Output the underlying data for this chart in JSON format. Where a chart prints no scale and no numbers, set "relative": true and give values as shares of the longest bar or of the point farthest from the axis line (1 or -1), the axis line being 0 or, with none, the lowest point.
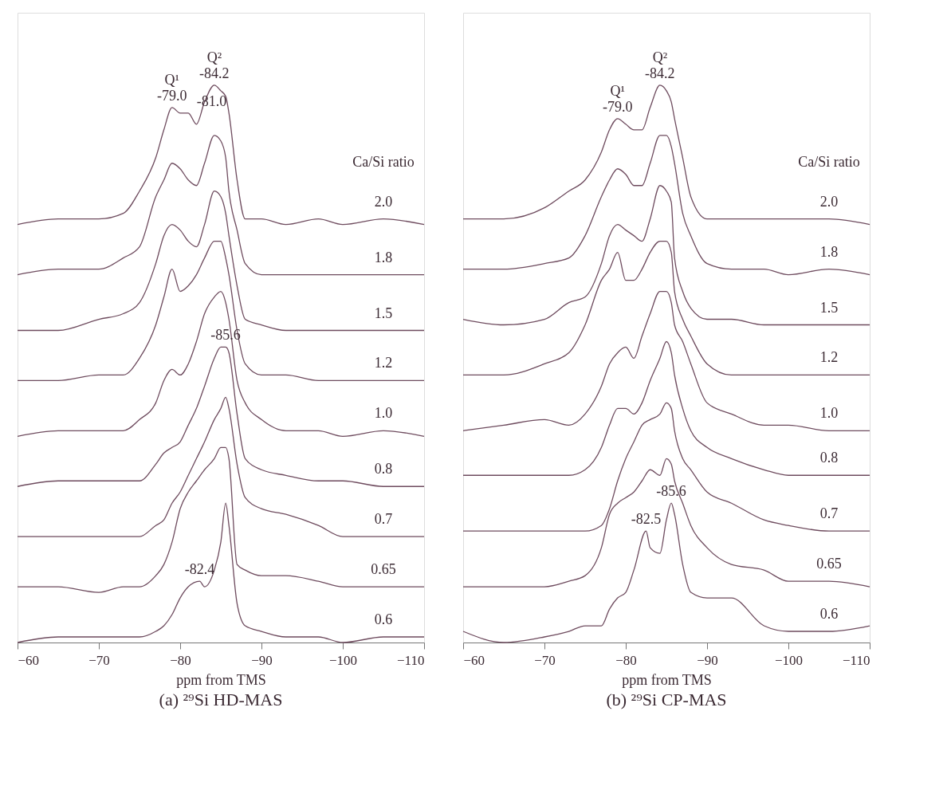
{
  "chart_data": [
    {
      "type": "line",
      "relative": true,
      "title": "(a) ²⁹Si HD-MAS",
      "xlabel": "ppm from TMS",
      "xlim": [
        -60,
        -110
      ],
      "xticks": [
        -60,
        -70,
        -80,
        -90,
        -100,
        -110
      ],
      "grid": false,
      "marker": "none",
      "line_style": "solid",
      "x": [
        -60,
        -65,
        -70,
        -73,
        -75,
        -77,
        -78,
        -79,
        -80,
        -81,
        -82,
        -83,
        -84.2,
        -85,
        -85.6,
        -86,
        -87,
        -88,
        -90,
        -93,
        -97,
        -100,
        -105,
        -110
      ],
      "annotations": [
        {
          "text": "-79.0",
          "x": -79,
          "y": 0.96
        },
        {
          "text": "Q¹",
          "x": -79,
          "y": 0.96
        },
        {
          "text": "-84.2",
          "x": -84.2,
          "y": 1.0
        },
        {
          "text": "Q²",
          "x": -84.2,
          "y": 1.0
        },
        {
          "text": "-81.0",
          "x": -81,
          "y": 0.95
        },
        {
          "text": "-85.6",
          "x": -85.6,
          "y": 0.53
        },
        {
          "text": "-82.4",
          "x": -82.4,
          "y": 0.11
        },
        "Ca/Si ratio"
      ],
      "series": [
        {
          "name": "2.0",
          "color": "#6e4b5e",
          "values": [
            0.75,
            0.76,
            0.76,
            0.77,
            0.81,
            0.87,
            0.92,
            0.96,
            0.95,
            0.95,
            0.93,
            0.97,
            1.0,
            0.99,
            0.98,
            0.95,
            0.83,
            0.76,
            0.76,
            0.75,
            0.76,
            0.75,
            0.76,
            0.75
          ]
        },
        {
          "name": "1.8",
          "color": "#6e4b5e",
          "values": [
            0.66,
            0.67,
            0.67,
            0.69,
            0.71,
            0.8,
            0.83,
            0.86,
            0.85,
            0.83,
            0.82,
            0.86,
            0.91,
            0.9,
            0.87,
            0.81,
            0.74,
            0.68,
            0.66,
            0.66,
            0.66,
            0.66,
            0.66,
            0.66
          ]
        },
        {
          "name": "1.5",
          "color": "#6e4b5e",
          "values": [
            0.56,
            0.56,
            0.58,
            0.59,
            0.61,
            0.68,
            0.73,
            0.75,
            0.74,
            0.72,
            0.71,
            0.75,
            0.81,
            0.8,
            0.77,
            0.73,
            0.64,
            0.58,
            0.57,
            0.56,
            0.56,
            0.56,
            0.56,
            0.56
          ]
        },
        {
          "name": "1.2",
          "color": "#6e4b5e",
          "values": [
            0.47,
            0.47,
            0.48,
            0.48,
            0.51,
            0.57,
            0.62,
            0.67,
            0.63,
            0.64,
            0.66,
            0.69,
            0.72,
            0.72,
            0.69,
            0.66,
            0.56,
            0.5,
            0.48,
            0.48,
            0.47,
            0.47,
            0.47,
            0.47
          ]
        },
        {
          "name": "1.0",
          "color": "#6e4b5e",
          "values": [
            0.37,
            0.38,
            0.38,
            0.38,
            0.4,
            0.43,
            0.47,
            0.49,
            0.48,
            0.5,
            0.54,
            0.59,
            0.62,
            0.63,
            0.61,
            0.58,
            0.47,
            0.43,
            0.4,
            0.38,
            0.38,
            0.37,
            0.38,
            0.37
          ]
        },
        {
          "name": "0.8",
          "color": "#6e4b5e",
          "values": [
            0.28,
            0.29,
            0.29,
            0.29,
            0.29,
            0.32,
            0.34,
            0.35,
            0.36,
            0.39,
            0.42,
            0.46,
            0.51,
            0.53,
            0.53,
            0.52,
            0.41,
            0.33,
            0.31,
            0.3,
            0.29,
            0.29,
            0.28,
            0.28
          ]
        },
        {
          "name": "0.7",
          "color": "#6e4b5e",
          "values": [
            0.19,
            0.19,
            0.19,
            0.19,
            0.19,
            0.21,
            0.22,
            0.25,
            0.27,
            0.3,
            0.33,
            0.36,
            0.4,
            0.42,
            0.44,
            0.42,
            0.32,
            0.26,
            0.24,
            0.23,
            0.21,
            0.19,
            0.19,
            0.19
          ]
        },
        {
          "name": "0.65",
          "color": "#6e4b5e",
          "values": [
            0.1,
            0.1,
            0.09,
            0.1,
            0.1,
            0.12,
            0.14,
            0.18,
            0.24,
            0.27,
            0.29,
            0.31,
            0.33,
            0.35,
            0.35,
            0.33,
            0.14,
            0.13,
            0.12,
            0.12,
            0.11,
            0.1,
            0.1,
            0.1
          ]
        },
        {
          "name": "0.6",
          "color": "#6e4b5e",
          "x": [
            -60,
            -65,
            -70,
            -73,
            -75,
            -77,
            -78,
            -79,
            -80,
            -81,
            -82.4,
            -83,
            -84.2,
            -85,
            -85.6,
            -86,
            -87,
            -88,
            -90,
            -93,
            -97,
            -100,
            -105,
            -110
          ],
          "values": [
            0.0,
            0.01,
            0.01,
            0.01,
            0.01,
            0.02,
            0.03,
            0.05,
            0.08,
            0.1,
            0.11,
            0.1,
            0.13,
            0.18,
            0.25,
            0.21,
            0.07,
            0.03,
            0.02,
            0.01,
            0.01,
            0.0,
            0.01,
            0.01
          ]
        }
      ]
    },
    {
      "type": "line",
      "relative": true,
      "title": "(b) ²⁹Si CP-MAS",
      "xlabel": "ppm from TMS",
      "xlim": [
        -60,
        -110
      ],
      "xticks": [
        -60,
        -70,
        -80,
        -90,
        -100,
        -110
      ],
      "grid": false,
      "marker": "none",
      "line_style": "solid",
      "x": [
        -60,
        -65,
        -70,
        -73,
        -75,
        -77,
        -78,
        -79,
        -80,
        -81,
        -82,
        -83,
        -84.2,
        -85,
        -85.6,
        -86,
        -87,
        -88,
        -90,
        -93,
        -97,
        -100,
        -105,
        -110
      ],
      "annotations": [
        {
          "text": "-79.0",
          "x": -79,
          "y": 0.94
        },
        {
          "text": "Q¹",
          "x": -79,
          "y": 0.94
        },
        {
          "text": "-84.2",
          "x": -84.2,
          "y": 1.0
        },
        {
          "text": "Q²",
          "x": -84.2,
          "y": 1.0
        },
        {
          "text": "-82.5",
          "x": -82.5,
          "y": 0.2
        },
        {
          "text": "-85.6",
          "x": -85.6,
          "y": 0.25
        },
        "Ca/Si ratio"
      ],
      "series": [
        {
          "name": "2.0",
          "color": "#6e4b5e",
          "values": [
            0.76,
            0.76,
            0.78,
            0.81,
            0.83,
            0.88,
            0.92,
            0.94,
            0.93,
            0.92,
            0.92,
            0.96,
            1.0,
            0.99,
            0.97,
            0.94,
            0.87,
            0.8,
            0.76,
            0.76,
            0.76,
            0.76,
            0.76,
            0.75
          ]
        },
        {
          "name": "1.8",
          "color": "#6e4b5e",
          "values": [
            0.67,
            0.67,
            0.68,
            0.69,
            0.73,
            0.8,
            0.83,
            0.85,
            0.84,
            0.82,
            0.82,
            0.86,
            0.91,
            0.91,
            0.89,
            0.86,
            0.77,
            0.73,
            0.68,
            0.67,
            0.67,
            0.66,
            0.67,
            0.66
          ]
        },
        {
          "name": "1.5",
          "color": "#6e4b5e",
          "values": [
            0.58,
            0.57,
            0.58,
            0.61,
            0.62,
            0.68,
            0.73,
            0.75,
            0.74,
            0.73,
            0.72,
            0.76,
            0.82,
            0.81,
            0.79,
            0.69,
            0.63,
            0.6,
            0.58,
            0.58,
            0.57,
            0.57,
            0.57,
            0.57
          ]
        },
        {
          "name": "1.2",
          "color": "#6e4b5e",
          "values": [
            0.48,
            0.48,
            0.5,
            0.52,
            0.57,
            0.65,
            0.67,
            0.7,
            0.65,
            0.65,
            0.67,
            0.7,
            0.72,
            0.72,
            0.7,
            0.63,
            0.58,
            0.55,
            0.5,
            0.48,
            0.48,
            0.48,
            0.48,
            0.48
          ]
        },
        {
          "name": "1.0",
          "color": "#6e4b5e",
          "values": [
            0.38,
            0.39,
            0.4,
            0.39,
            0.41,
            0.46,
            0.5,
            0.52,
            0.53,
            0.51,
            0.55,
            0.59,
            0.63,
            0.63,
            0.61,
            0.57,
            0.54,
            0.5,
            0.43,
            0.41,
            0.39,
            0.39,
            0.38,
            0.38
          ]
        },
        {
          "name": "0.8",
          "color": "#6e4b5e",
          "values": [
            0.3,
            0.3,
            0.3,
            0.3,
            0.31,
            0.35,
            0.39,
            0.42,
            0.42,
            0.41,
            0.43,
            0.47,
            0.51,
            0.54,
            0.52,
            0.48,
            0.42,
            0.38,
            0.35,
            0.33,
            0.31,
            0.3,
            0.3,
            0.3
          ]
        },
        {
          "name": "0.7",
          "color": "#6e4b5e",
          "values": [
            0.2,
            0.2,
            0.2,
            0.2,
            0.2,
            0.21,
            0.24,
            0.29,
            0.33,
            0.36,
            0.39,
            0.4,
            0.41,
            0.43,
            0.42,
            0.38,
            0.33,
            0.31,
            0.27,
            0.25,
            0.22,
            0.21,
            0.2,
            0.2
          ]
        },
        {
          "name": "0.65",
          "color": "#6e4b5e",
          "values": [
            0.1,
            0.1,
            0.1,
            0.11,
            0.12,
            0.17,
            0.23,
            0.25,
            0.26,
            0.27,
            0.29,
            0.31,
            0.3,
            0.33,
            0.32,
            0.29,
            0.25,
            0.21,
            0.17,
            0.14,
            0.13,
            0.11,
            0.11,
            0.1
          ]
        },
        {
          "name": "0.6",
          "color": "#6e4b5e",
          "x": [
            -60,
            -65,
            -70,
            -73,
            -75,
            -77,
            -78,
            -79,
            -80,
            -81,
            -82.5,
            -83,
            -84.2,
            -85,
            -85.6,
            -86,
            -87,
            -88,
            -90,
            -93,
            -97,
            -100,
            -105,
            -110
          ],
          "values": [
            0.02,
            0.0,
            0.01,
            0.02,
            0.03,
            0.03,
            0.06,
            0.08,
            0.09,
            0.13,
            0.2,
            0.17,
            0.16,
            0.22,
            0.25,
            0.23,
            0.14,
            0.09,
            0.08,
            0.08,
            0.03,
            0.02,
            0.02,
            0.03
          ]
        }
      ]
    }
  ]
}
